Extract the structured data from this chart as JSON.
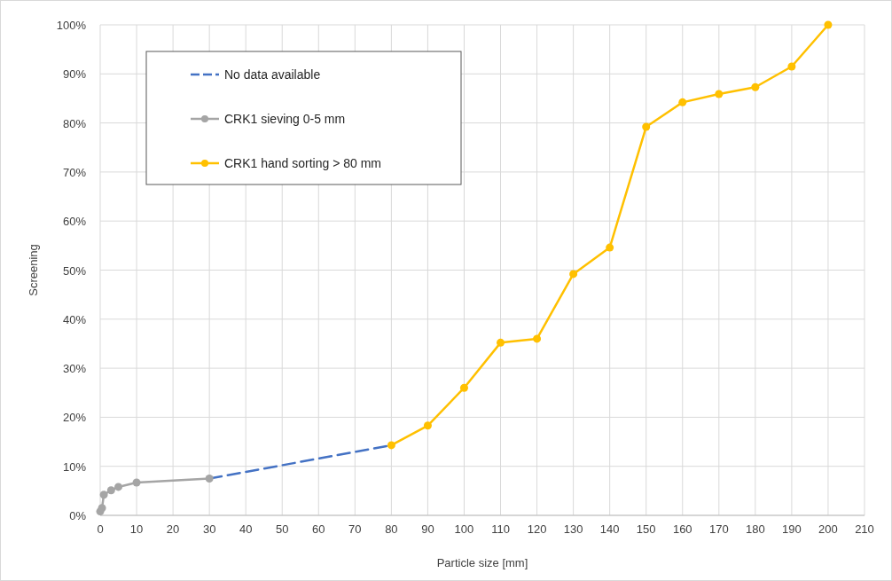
{
  "chart_data": {
    "type": "line",
    "xlabel": "Particle size [mm]",
    "ylabel": "Screening",
    "xlim": [
      0,
      210
    ],
    "xticks": [
      0,
      10,
      20,
      30,
      40,
      50,
      60,
      70,
      80,
      90,
      100,
      110,
      120,
      130,
      140,
      150,
      160,
      170,
      180,
      190,
      200,
      210
    ],
    "ylim": [
      0,
      100
    ],
    "yticks": [
      {
        "value": 0,
        "label": "0%"
      },
      {
        "value": 10,
        "label": "10%"
      },
      {
        "value": 20,
        "label": "20%"
      },
      {
        "value": 30,
        "label": "30%"
      },
      {
        "value": 40,
        "label": "40%"
      },
      {
        "value": 50,
        "label": "50%"
      },
      {
        "value": 60,
        "label": "60%"
      },
      {
        "value": 70,
        "label": "70%"
      },
      {
        "value": 80,
        "label": "80%"
      },
      {
        "value": 90,
        "label": "90%"
      },
      {
        "value": 100,
        "label": "100%"
      }
    ],
    "grid": true,
    "legend": "top left",
    "series": [
      {
        "name": "No data available",
        "color": "#4472c4",
        "x": [
          30,
          80
        ],
        "values": [
          7.5,
          14.3
        ],
        "line_style": "dashed",
        "marker": "none"
      },
      {
        "name": "CRK1 sieving 0-5 mm",
        "color": "#a5a5a5",
        "x": [
          0,
          0.5,
          1,
          3,
          5,
          10,
          30
        ],
        "values": [
          0.8,
          1.5,
          4.2,
          5.1,
          5.8,
          6.7,
          7.5
        ],
        "line_style": "solid",
        "marker": "circle"
      },
      {
        "name": "CRK1 hand sorting > 80 mm",
        "color": "#ffc000",
        "x": [
          80,
          90,
          100,
          110,
          120,
          130,
          140,
          150,
          160,
          170,
          180,
          190,
          200
        ],
        "values": [
          14.3,
          18.3,
          26,
          35.2,
          36,
          49.2,
          54.6,
          79.2,
          84.2,
          85.9,
          87.3,
          91.5,
          100
        ],
        "line_style": "solid",
        "marker": "circle"
      }
    ]
  }
}
